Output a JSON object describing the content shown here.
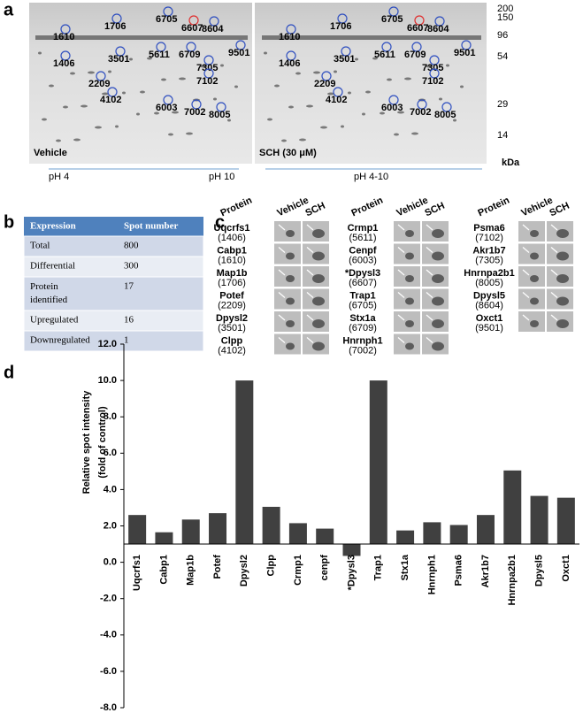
{
  "panel_a": {
    "label": "a",
    "gels": [
      {
        "label": "Vehicle"
      },
      {
        "label": "SCH (30 μM)"
      }
    ],
    "spots": [
      "1610",
      "1706",
      "6705",
      "6607",
      "8604",
      "1406",
      "3501",
      "5611",
      "6709",
      "9501",
      "7305",
      "2209",
      "7102",
      "4102",
      "6003",
      "7002",
      "8005"
    ],
    "mw_markers": [
      "200",
      "150",
      "96",
      "54",
      "29",
      "14"
    ],
    "mw_unit": "kDa",
    "ph_left": "pH 4",
    "ph_right": "pH 10",
    "ph_range": "pH 4-10"
  },
  "panel_b": {
    "label": "b",
    "header": [
      "Expression",
      "Spot number"
    ],
    "rows": [
      [
        "Total",
        "800"
      ],
      [
        "Differential",
        "300"
      ],
      [
        "Protein identified",
        "17"
      ],
      [
        "Upregulated",
        "16"
      ],
      [
        "Downregulated",
        "1"
      ]
    ]
  },
  "panel_c": {
    "label": "c",
    "columns": [
      {
        "headers": [
          "Protein",
          "Vehicle",
          "SCH"
        ],
        "proteins": [
          {
            "name": "Uqcrfs1",
            "id": "(1406)"
          },
          {
            "name": "Cabp1",
            "id": "(1610)"
          },
          {
            "name": "Map1b",
            "id": "(1706)"
          },
          {
            "name": "Potef",
            "id": "(2209)"
          },
          {
            "name": "Dpysl2",
            "id": "(3501)"
          },
          {
            "name": "Clpp",
            "id": "(4102)"
          }
        ]
      },
      {
        "headers": [
          "Protein",
          "Vehicle",
          "SCH"
        ],
        "proteins": [
          {
            "name": "Crmp1",
            "id": "(5611)"
          },
          {
            "name": "Cenpf",
            "id": "(6003)"
          },
          {
            "name": "*Dpysl3",
            "id": "(6607)"
          },
          {
            "name": "Trap1",
            "id": "(6705)"
          },
          {
            "name": "Stx1a",
            "id": "(6709)"
          },
          {
            "name": "Hnrnph1",
            "id": "(7002)"
          }
        ]
      },
      {
        "headers": [
          "Protein",
          "Vehicle",
          "SCH"
        ],
        "proteins": [
          {
            "name": "Psma6",
            "id": "(7102)"
          },
          {
            "name": "Akr1b7",
            "id": "(7305)"
          },
          {
            "name": "Hnrnpa2b1",
            "id": "(8005)"
          },
          {
            "name": "Dpysl5",
            "id": "(8604)"
          },
          {
            "name": "Oxct1",
            "id": "(9501)"
          }
        ]
      }
    ]
  },
  "panel_d": {
    "label": "d"
  },
  "chart_data": {
    "type": "bar",
    "y_label": [
      "Relative spot intensity",
      "(fold of control)"
    ],
    "categories": [
      "Uqcrfs1",
      "Cabp1",
      "Map1b",
      "Potef",
      "Dpysl2",
      "Clpp",
      "Crmp1",
      "cenpf",
      "*Dpysl3",
      "Trap1",
      "Stx1a",
      "Hnrnph1",
      "Psma6",
      "Akr1b7",
      "Hnrnpa2b1",
      "Dpysl5",
      "Oxct1"
    ],
    "values": [
      2.6,
      1.65,
      2.35,
      2.7,
      10.0,
      3.05,
      2.15,
      1.85,
      0.35,
      10.0,
      1.75,
      2.2,
      2.05,
      2.6,
      5.05,
      3.65,
      3.55
    ],
    "color": "#404040",
    "x_axis_crosses": 1,
    "ylim": [
      -8,
      12
    ],
    "yticks": [
      {
        "value": -8,
        "label": "-8.0"
      },
      {
        "value": -6,
        "label": "-6.0"
      },
      {
        "value": -4,
        "label": "-4.0"
      },
      {
        "value": -2,
        "label": "-2.0"
      },
      {
        "value": 0,
        "label": "0.0"
      },
      {
        "value": 2,
        "label": "2.0"
      },
      {
        "value": 4,
        "label": "4.0"
      },
      {
        "value": 6,
        "label": "6.0"
      },
      {
        "value": 8,
        "label": "8.0"
      },
      {
        "value": 10,
        "label": "10.0"
      },
      {
        "value": 12,
        "label": "12.0"
      }
    ]
  }
}
